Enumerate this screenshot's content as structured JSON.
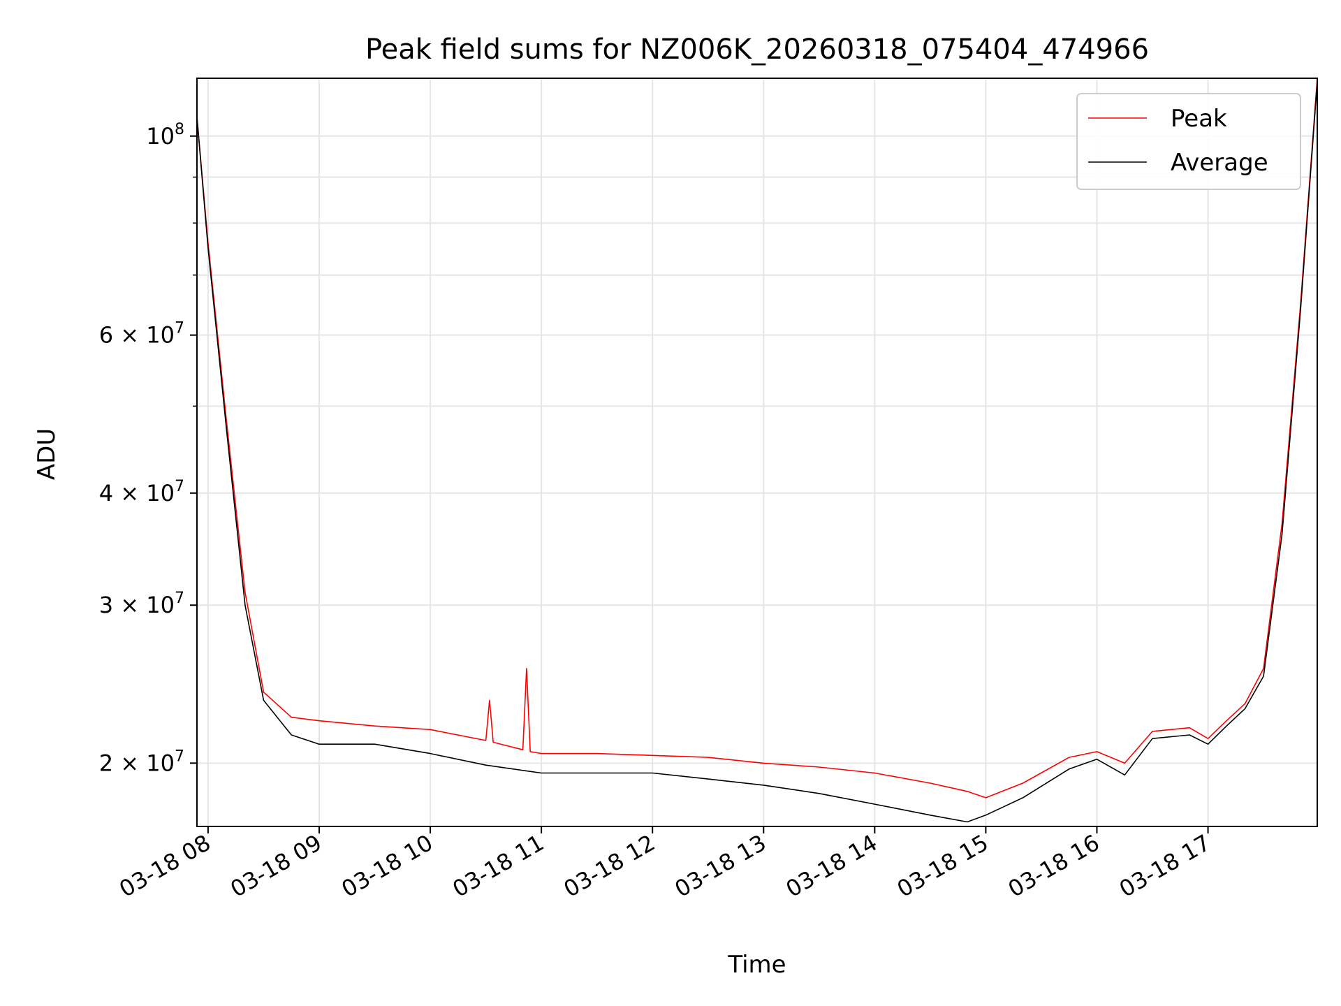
{
  "chart_data": {
    "type": "line",
    "title": "Peak field sums for NZ006K_20260318_075404_474966",
    "xlabel": "Time",
    "ylabel": "ADU",
    "yscale": "log",
    "ylim": [
      17000000,
      116000000
    ],
    "xlim": [
      "2026-03-18 07:54",
      "2026-03-18 17:59"
    ],
    "grid": true,
    "legend_position": "upper right",
    "x_ticks": [
      "03-18 08",
      "03-18 09",
      "03-18 10",
      "03-18 11",
      "03-18 12",
      "03-18 13",
      "03-18 14",
      "03-18 15",
      "03-18 16",
      "03-18 17"
    ],
    "y_ticks": [
      {
        "value": 100000000,
        "label": "10^8"
      },
      {
        "value": 60000000,
        "label": "6 × 10^7"
      },
      {
        "value": 40000000,
        "label": "4 × 10^7"
      },
      {
        "value": 30000000,
        "label": "3 × 10^7"
      },
      {
        "value": 20000000,
        "label": "2 × 10^7"
      }
    ],
    "series": [
      {
        "name": "Peak",
        "color": "#ff0000",
        "x": [
          "2026-03-18 07:54",
          "2026-03-18 08:00",
          "2026-03-18 08:10",
          "2026-03-18 08:20",
          "2026-03-18 08:30",
          "2026-03-18 08:45",
          "2026-03-18 09:00",
          "2026-03-18 09:30",
          "2026-03-18 10:00",
          "2026-03-18 10:30",
          "2026-03-18 10:32",
          "2026-03-18 10:34",
          "2026-03-18 10:50",
          "2026-03-18 10:52",
          "2026-03-18 10:54",
          "2026-03-18 11:00",
          "2026-03-18 11:30",
          "2026-03-18 12:00",
          "2026-03-18 12:30",
          "2026-03-18 13:00",
          "2026-03-18 13:30",
          "2026-03-18 14:00",
          "2026-03-18 14:30",
          "2026-03-18 14:50",
          "2026-03-18 15:00",
          "2026-03-18 15:20",
          "2026-03-18 15:45",
          "2026-03-18 16:00",
          "2026-03-18 16:15",
          "2026-03-18 16:30",
          "2026-03-18 16:50",
          "2026-03-18 17:00",
          "2026-03-18 17:10",
          "2026-03-18 17:20",
          "2026-03-18 17:30",
          "2026-03-18 17:40",
          "2026-03-18 17:50",
          "2026-03-18 17:59"
        ],
        "values": [
          105000000,
          76000000,
          48000000,
          31000000,
          24000000,
          22500000,
          22300000,
          22000000,
          21800000,
          21200000,
          23500000,
          21100000,
          20700000,
          25500000,
          20600000,
          20500000,
          20500000,
          20400000,
          20300000,
          20000000,
          19800000,
          19500000,
          19000000,
          18600000,
          18300000,
          19000000,
          20300000,
          20600000,
          20000000,
          21700000,
          21900000,
          21300000,
          22300000,
          23300000,
          25500000,
          37000000,
          65000000,
          116000000
        ]
      },
      {
        "name": "Average",
        "color": "#000000",
        "x": [
          "2026-03-18 07:54",
          "2026-03-18 08:00",
          "2026-03-18 08:10",
          "2026-03-18 08:20",
          "2026-03-18 08:30",
          "2026-03-18 08:45",
          "2026-03-18 09:00",
          "2026-03-18 09:30",
          "2026-03-18 10:00",
          "2026-03-18 10:30",
          "2026-03-18 11:00",
          "2026-03-18 11:30",
          "2026-03-18 12:00",
          "2026-03-18 12:30",
          "2026-03-18 13:00",
          "2026-03-18 13:30",
          "2026-03-18 14:00",
          "2026-03-18 14:30",
          "2026-03-18 14:50",
          "2026-03-18 15:00",
          "2026-03-18 15:20",
          "2026-03-18 15:45",
          "2026-03-18 16:00",
          "2026-03-18 16:15",
          "2026-03-18 16:30",
          "2026-03-18 16:50",
          "2026-03-18 17:00",
          "2026-03-18 17:10",
          "2026-03-18 17:20",
          "2026-03-18 17:30",
          "2026-03-18 17:40",
          "2026-03-18 17:50",
          "2026-03-18 17:59"
        ],
        "values": [
          105000000,
          75000000,
          47000000,
          30000000,
          23500000,
          21500000,
          21000000,
          21000000,
          20500000,
          19900000,
          19500000,
          19500000,
          19500000,
          19200000,
          18900000,
          18500000,
          18000000,
          17500000,
          17200000,
          17500000,
          18300000,
          19700000,
          20200000,
          19400000,
          21300000,
          21500000,
          21000000,
          22000000,
          23000000,
          25000000,
          36000000,
          64000000,
          115000000
        ]
      }
    ]
  }
}
